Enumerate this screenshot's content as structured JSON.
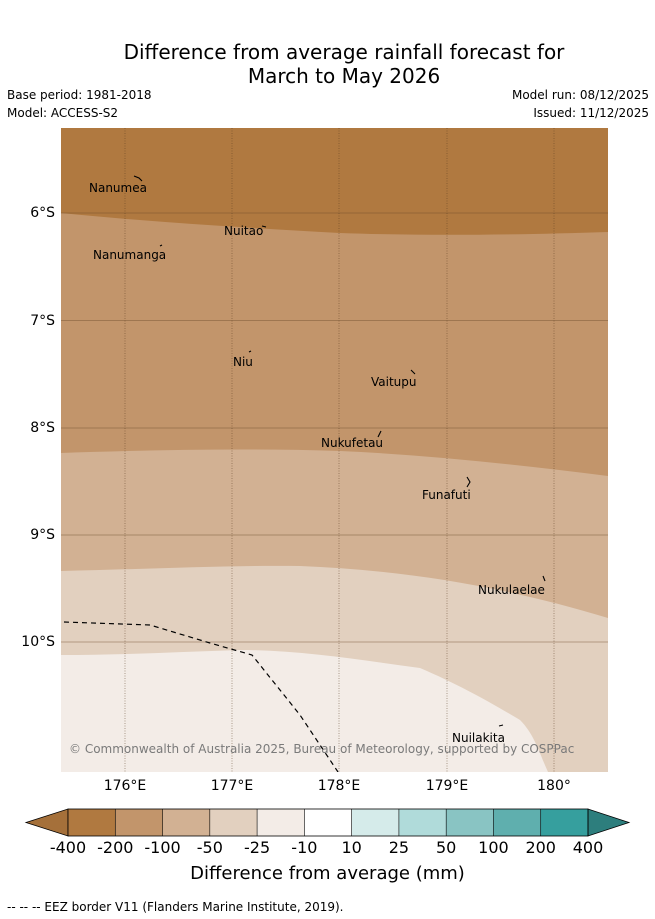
{
  "title": {
    "line1": "Difference from average rainfall forecast for",
    "line2": "March to May 2026"
  },
  "meta": {
    "base_period": "Base period: 1981-2018",
    "model": "Model: ACCESS-S2",
    "model_run": "Model run: 08/12/2025",
    "issued": "Issued: 11/12/2025"
  },
  "map": {
    "lat_labels": [
      "6°S",
      "7°S",
      "8°S",
      "9°S",
      "10°S"
    ],
    "lon_labels": [
      "176°E",
      "177°E",
      "178°E",
      "179°E",
      "180°"
    ],
    "places": {
      "nanumea": "Nanumea",
      "nuitao": "Nuitao",
      "nanumanga": "Nanumanga",
      "niu": "Niu",
      "vaitupu": "Vaitupu",
      "nukufetau": "Nukufetau",
      "funafuti": "Funafuti",
      "nukulaelae": "Nukulaelae",
      "nuilakita": "Nuilakita"
    },
    "copyright": "© Commonwealth of Australia 2025, Bureau of Meteorology, supported by COSPPac"
  },
  "colorbar": {
    "ticks": [
      "-400",
      "-200",
      "-100",
      "-50",
      "-25",
      "-10",
      "10",
      "25",
      "50",
      "100",
      "200",
      "400"
    ],
    "colors": [
      "#a5703a",
      "#b07940",
      "#c2956b",
      "#d2b193",
      "#e2d0bf",
      "#f3ece7",
      "#ffffff",
      "#d5ebea",
      "#b0dbda",
      "#89c4c3",
      "#5fafae",
      "#369f9e",
      "#2d7e7d"
    ],
    "label": "Difference from average (mm)"
  },
  "footnote": "--  --  -- EEZ border V11 (Flanders Marine Institute, 2019)."
}
